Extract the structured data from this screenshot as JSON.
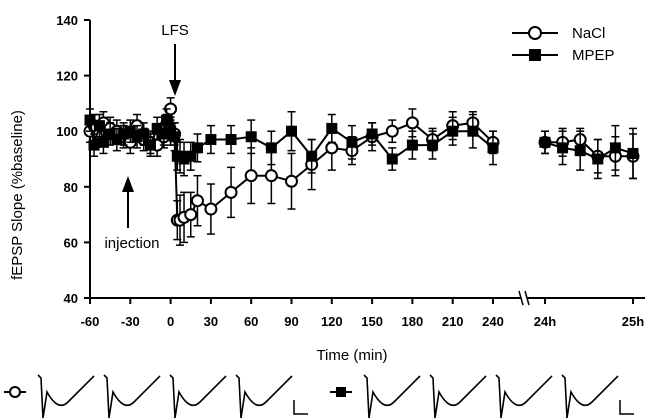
{
  "chart_data": {
    "type": "line",
    "xlabel": "Time (min)",
    "ylabel": "fEPSP Slope (%baseline)",
    "ylim": [
      40,
      140
    ],
    "yticks": [
      40,
      60,
      80,
      100,
      120,
      140
    ],
    "xticks": [
      "-60",
      "-30",
      "0",
      "30",
      "60",
      "90",
      "120",
      "150",
      "180",
      "210",
      "240",
      "24h",
      "25h"
    ],
    "axis_break": "between 240 and 24h",
    "legend_position": "top-right",
    "annotations": [
      "LFS",
      "injection"
    ],
    "series": [
      {
        "name": "NaCl",
        "marker": "open-circle",
        "x": [
          "-60",
          "-57",
          "-53",
          "-50",
          "-45",
          "-40",
          "-35",
          "-30",
          "-25",
          "-20",
          "-15",
          "-10",
          "-5",
          "-3",
          "0",
          "3",
          "5",
          "7",
          "10",
          "15",
          "20",
          "30",
          "45",
          "60",
          "75",
          "90",
          "105",
          "120",
          "135",
          "150",
          "165",
          "180",
          "195",
          "210",
          "225",
          "240",
          "24h+0",
          "24h+12",
          "24h+24",
          "24h+36",
          "24h+48",
          "25h"
        ],
        "y": [
          100,
          102,
          99,
          103,
          101,
          100,
          98,
          96,
          102,
          97,
          96,
          95,
          98,
          102,
          108,
          99,
          68,
          68,
          69,
          70,
          75,
          72,
          78,
          84,
          84,
          82,
          88,
          94,
          93,
          98,
          100,
          103,
          97,
          102,
          103,
          96,
          96,
          96,
          97,
          91,
          91,
          91
        ],
        "err": [
          4,
          4,
          4,
          4,
          4,
          4,
          4,
          4,
          4,
          4,
          4,
          4,
          4,
          4,
          4,
          4,
          7,
          9,
          9,
          8,
          9,
          9,
          9,
          10,
          10,
          10,
          9,
          8,
          5,
          5,
          4,
          5,
          4,
          5,
          4,
          4,
          4,
          5,
          4,
          6,
          7,
          8
        ]
      },
      {
        "name": "MPEP",
        "marker": "filled-square",
        "x": [
          "-60",
          "-57",
          "-53",
          "-50",
          "-45",
          "-40",
          "-35",
          "-30",
          "-25",
          "-20",
          "-15",
          "-10",
          "-5",
          "-3",
          "0",
          "3",
          "5",
          "7",
          "10",
          "15",
          "20",
          "30",
          "45",
          "60",
          "75",
          "90",
          "105",
          "120",
          "135",
          "150",
          "165",
          "180",
          "195",
          "210",
          "225",
          "240",
          "24h+0",
          "24h+12",
          "24h+24",
          "24h+36",
          "24h+48",
          "25h"
        ],
        "y": [
          104,
          95,
          102,
          96,
          99,
          97,
          99,
          100,
          98,
          99,
          95,
          101,
          99,
          104,
          100,
          98,
          91,
          91,
          90,
          91,
          94,
          97,
          97,
          98,
          94,
          100,
          91,
          101,
          96,
          99,
          90,
          95,
          95,
          100,
          100,
          94,
          96,
          94,
          93,
          90,
          94,
          92
        ],
        "err": [
          4,
          4,
          4,
          4,
          4,
          4,
          4,
          4,
          4,
          4,
          4,
          4,
          4,
          4,
          5,
          5,
          5,
          6,
          6,
          5,
          5,
          5,
          5,
          6,
          6,
          7,
          6,
          5,
          6,
          4,
          4,
          5,
          5,
          5,
          6,
          6,
          4,
          6,
          7,
          7,
          8,
          9
        ]
      }
    ]
  },
  "traces": {
    "nacl_marker": "open-circle",
    "mpep_marker": "filled-square",
    "nacl_count": 4,
    "mpep_count": 4
  }
}
